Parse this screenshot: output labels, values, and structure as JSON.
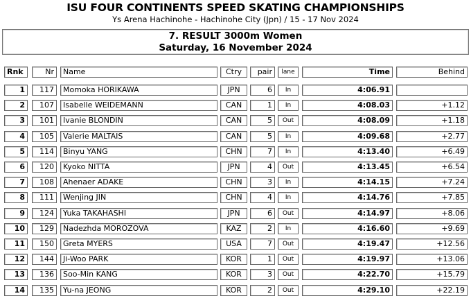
{
  "header": {
    "title": "ISU FOUR CONTINENTS SPEED SKATING CHAMPIONSHIPS",
    "subtitle": "Ys Arena Hachinohe - Hachinohe City (Jpn) / 15 - 17 Nov 2024"
  },
  "event": {
    "title": "7. RESULT 3000m Women",
    "date": "Saturday, 16 November 2024"
  },
  "columns": [
    "Rnk",
    "Nr",
    "Name",
    "Ctry",
    "pair",
    "lane",
    "Time",
    "Behind"
  ],
  "rows": [
    [
      "1",
      "117",
      "Momoka HORIKAWA",
      "JPN",
      "6",
      "In",
      "4:06.91",
      ""
    ],
    [
      "2",
      "107",
      "Isabelle WEIDEMANN",
      "CAN",
      "1",
      "In",
      "4:08.03",
      "+1.12"
    ],
    [
      "3",
      "101",
      "Ivanie BLONDIN",
      "CAN",
      "5",
      "Out",
      "4:08.09",
      "+1.18"
    ],
    [
      "4",
      "105",
      "Valerie MALTAIS",
      "CAN",
      "5",
      "In",
      "4:09.68",
      "+2.77"
    ],
    [
      "5",
      "114",
      "Binyu YANG",
      "CHN",
      "7",
      "In",
      "4:13.40",
      "+6.49"
    ],
    [
      "6",
      "120",
      "Kyoko NITTA",
      "JPN",
      "4",
      "Out",
      "4:13.45",
      "+6.54"
    ],
    [
      "7",
      "108",
      "Ahenaer ADAKE",
      "CHN",
      "3",
      "In",
      "4:14.15",
      "+7.24"
    ],
    [
      "8",
      "111",
      "Wenjing JIN",
      "CHN",
      "4",
      "In",
      "4:14.76",
      "+7.85"
    ],
    [
      "9",
      "124",
      "Yuka TAKAHASHI",
      "JPN",
      "6",
      "Out",
      "4:14.97",
      "+8.06"
    ],
    [
      "10",
      "129",
      "Nadezhda MOROZOVA",
      "KAZ",
      "2",
      "In",
      "4:16.60",
      "+9.69"
    ],
    [
      "11",
      "150",
      "Greta MYERS",
      "USA",
      "7",
      "Out",
      "4:19.47",
      "+12.56"
    ],
    [
      "12",
      "144",
      "Ji-Woo PARK",
      "KOR",
      "1",
      "Out",
      "4:19.97",
      "+13.06"
    ],
    [
      "13",
      "136",
      "Soo-Min KANG",
      "KOR",
      "3",
      "Out",
      "4:22.70",
      "+15.79"
    ],
    [
      "14",
      "135",
      "Yu-na JEONG",
      "KOR",
      "2",
      "Out",
      "4:29.10",
      "+22.19"
    ]
  ]
}
